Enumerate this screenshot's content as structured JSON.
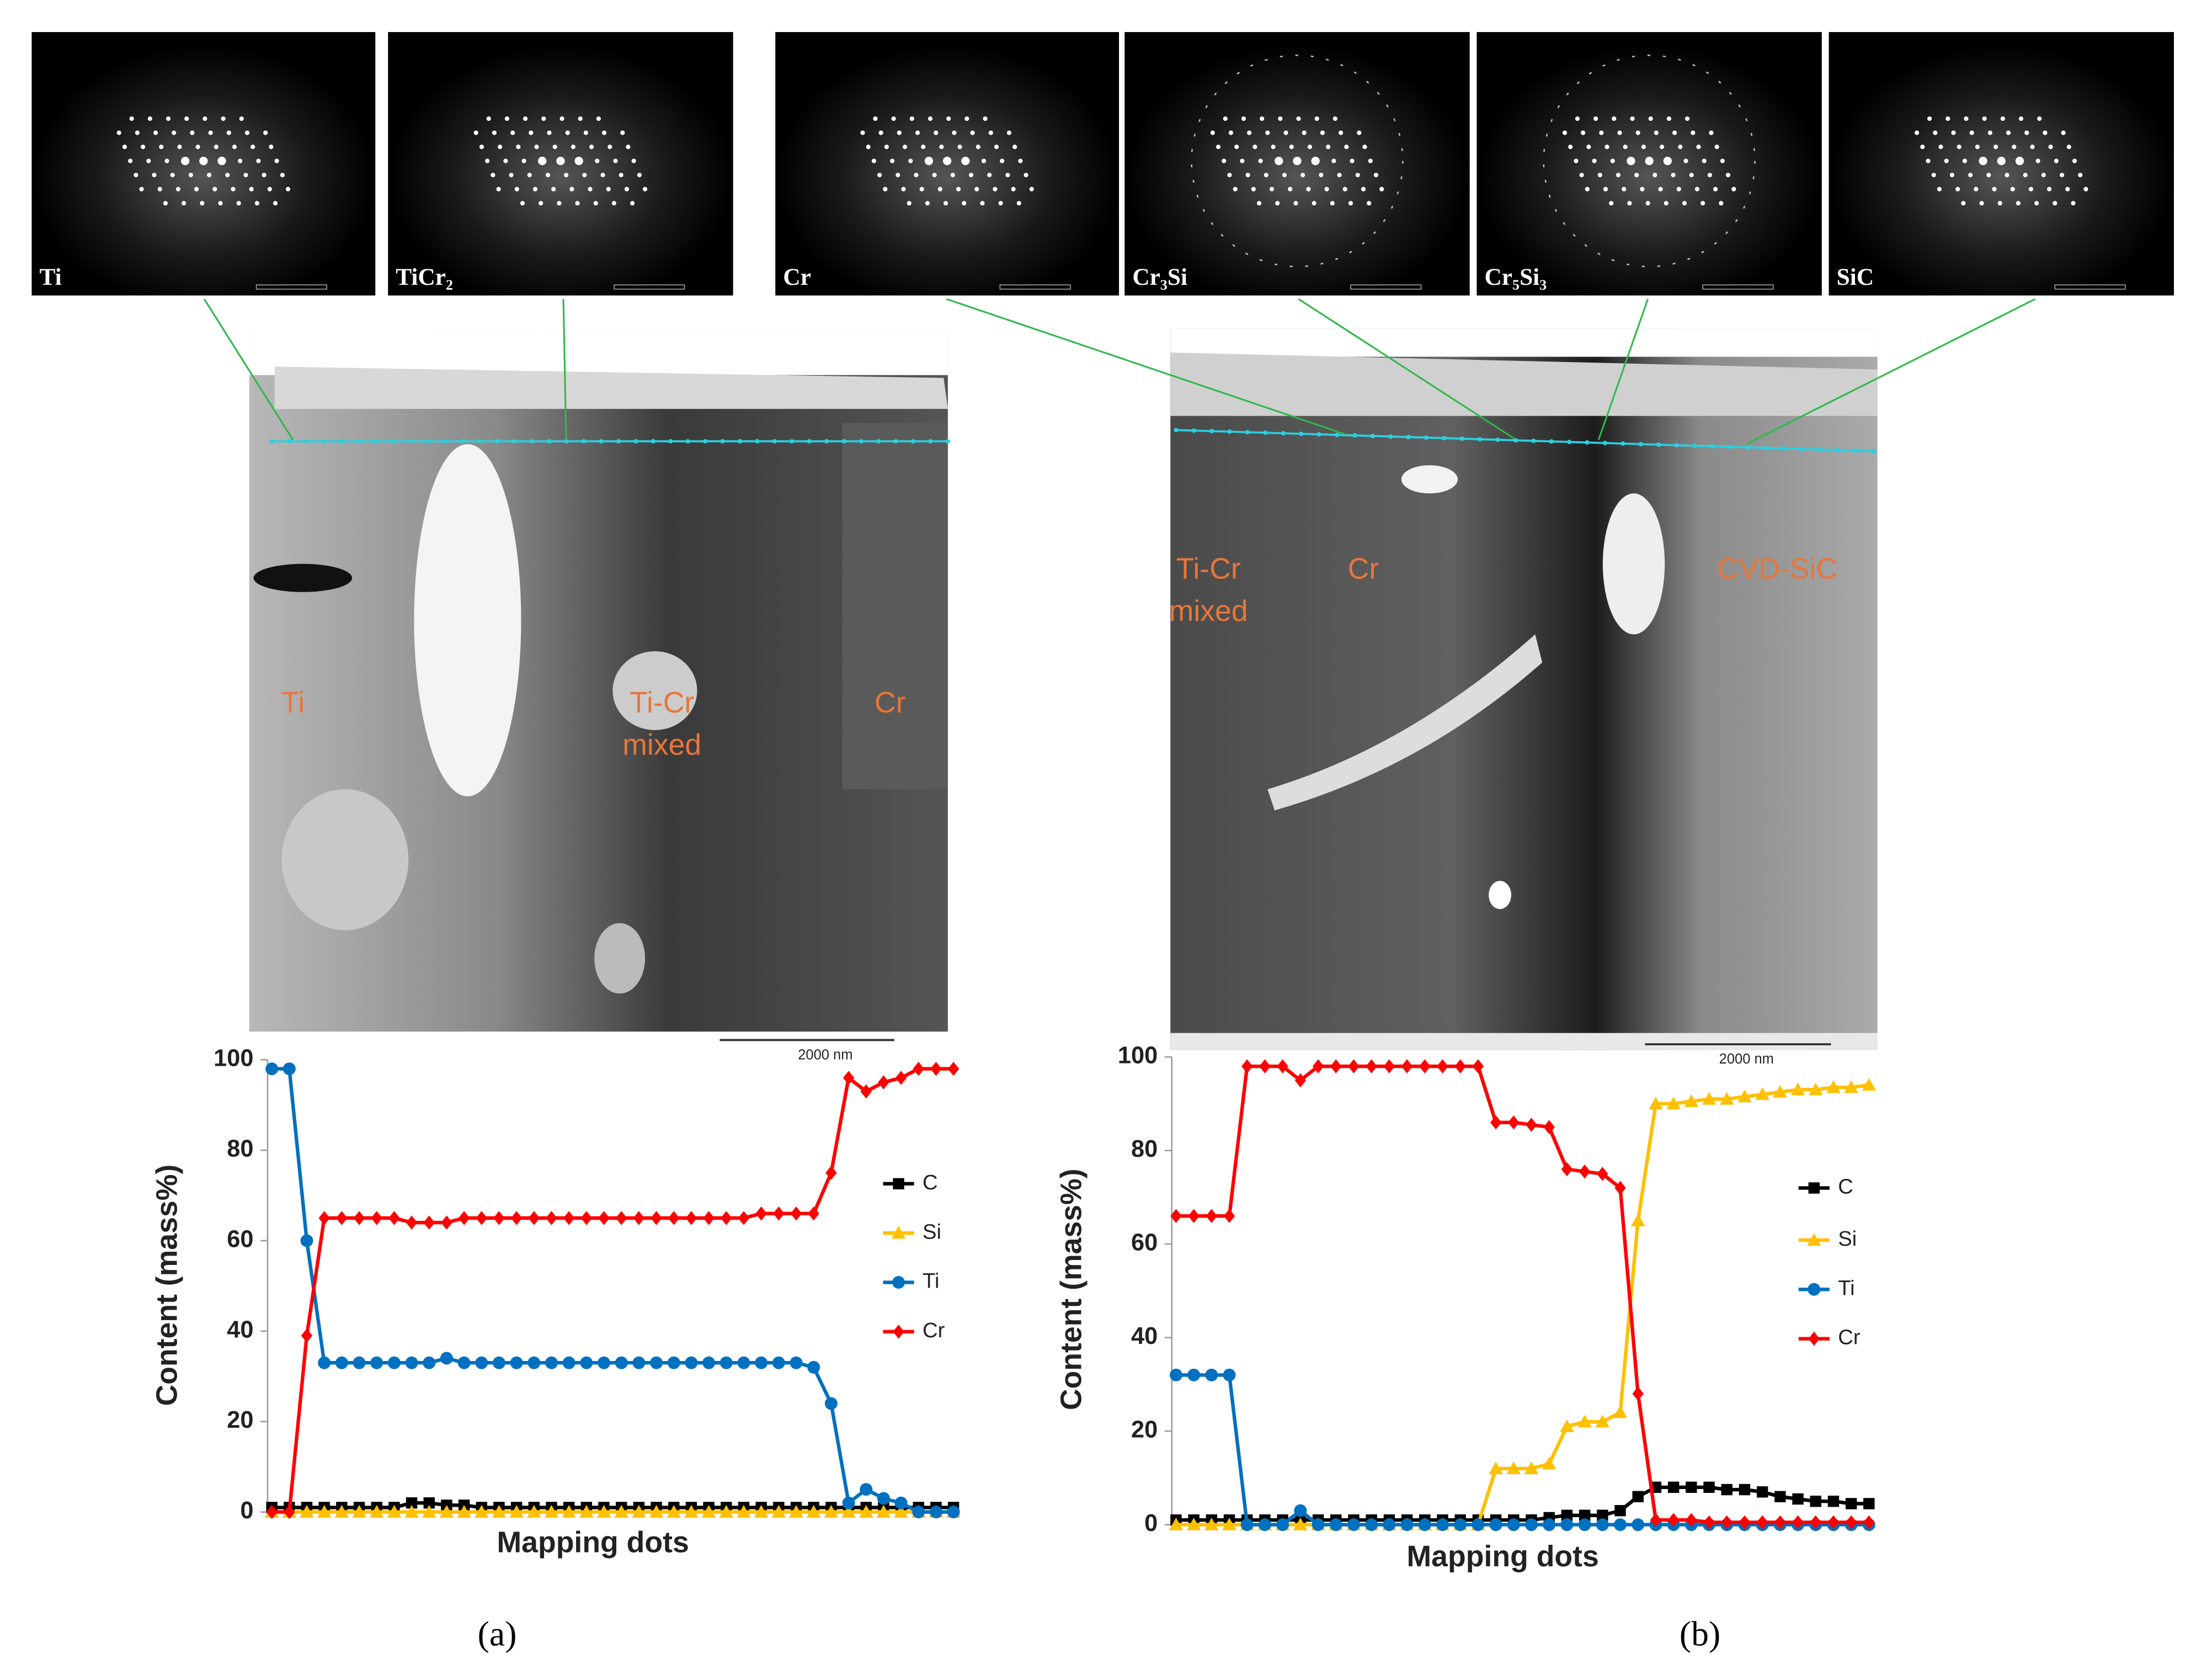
{
  "diffraction_labels": [
    "Ti",
    "TiCr₂",
    "Cr",
    "Cr₃Si",
    "Cr₅Si₃",
    "SiC"
  ],
  "micrographs": [
    {
      "labels": [
        [
          "Ti"
        ],
        [
          "Ti-Cr",
          "mixed"
        ],
        [
          "Cr"
        ]
      ],
      "scale_bar": "2000 nm"
    },
    {
      "labels": [
        [
          "Ti-Cr",
          "mixed"
        ],
        [
          "Cr"
        ],
        [
          "CVD-SiC"
        ]
      ],
      "scale_bar": "2000 nm"
    }
  ],
  "panel_labels": [
    "(a)",
    "(b)"
  ],
  "chart_data": [
    {
      "type": "line",
      "ylabel": "Content (mass%)",
      "xlabel": "Mapping dots",
      "categories": [
        null,
        null,
        null,
        null,
        null,
        null,
        null,
        null,
        null,
        null,
        null,
        null,
        null,
        null,
        null,
        null,
        null,
        null,
        null,
        null,
        null,
        null,
        null,
        null,
        null,
        null,
        null,
        null,
        null,
        null,
        null,
        null,
        null,
        null,
        null,
        null,
        null,
        null,
        null,
        null
      ],
      "ylim": [
        0,
        100
      ],
      "yticks": [
        0,
        20,
        40,
        60,
        80,
        100
      ],
      "grid": false,
      "series": [
        {
          "name": "C",
          "color": "#000000",
          "marker": "square",
          "values": [
            1,
            1,
            1,
            1,
            1,
            1,
            1,
            1,
            2,
            2,
            1.5,
            1.5,
            1,
            1,
            1,
            1,
            1,
            1,
            1,
            1,
            1,
            1,
            1,
            1,
            1,
            1,
            1,
            1,
            1,
            1,
            1,
            1,
            1,
            1,
            1,
            1,
            1,
            1,
            1,
            1
          ]
        },
        {
          "name": "Si",
          "color": "#ffc000",
          "marker": "triangle",
          "values": [
            0,
            0,
            0,
            0,
            0,
            0,
            0,
            0,
            0,
            0,
            0,
            0,
            0,
            0,
            0,
            0,
            0,
            0,
            0,
            0,
            0,
            0,
            0,
            0,
            0,
            0,
            0,
            0,
            0,
            0,
            0,
            0,
            0,
            0,
            0,
            0,
            0,
            0,
            0,
            0
          ]
        },
        {
          "name": "Ti",
          "color": "#0070c0",
          "marker": "circle",
          "values": [
            98,
            98,
            60,
            33,
            33,
            33,
            33,
            33,
            33,
            33,
            34,
            33,
            33,
            33,
            33,
            33,
            33,
            33,
            33,
            33,
            33,
            33,
            33,
            33,
            33,
            33,
            33,
            33,
            33,
            33,
            33,
            32,
            24,
            2,
            5,
            3,
            2,
            0,
            0,
            0
          ]
        },
        {
          "name": "Cr",
          "color": "#ff0000",
          "marker": "diamond",
          "values": [
            0,
            0,
            39,
            65,
            65,
            65,
            65,
            65,
            64,
            64,
            64,
            65,
            65,
            65,
            65,
            65,
            65,
            65,
            65,
            65,
            65,
            65,
            65,
            65,
            65,
            65,
            65,
            65,
            66,
            66,
            66,
            66,
            75,
            96,
            93,
            95,
            96,
            98,
            98,
            98
          ]
        }
      ]
    },
    {
      "type": "line",
      "ylabel": "Content (mass%)",
      "xlabel": "Mapping dots",
      "categories": [
        null,
        null,
        null,
        null,
        null,
        null,
        null,
        null,
        null,
        null,
        null,
        null,
        null,
        null,
        null,
        null,
        null,
        null,
        null,
        null,
        null,
        null,
        null,
        null,
        null,
        null,
        null,
        null,
        null,
        null,
        null,
        null,
        null,
        null,
        null,
        null,
        null,
        null,
        null,
        null
      ],
      "ylim": [
        0,
        100
      ],
      "yticks": [
        0,
        20,
        40,
        60,
        80,
        100
      ],
      "grid": false,
      "series": [
        {
          "name": "C",
          "color": "#000000",
          "marker": "square",
          "values": [
            1,
            1,
            1,
            1,
            1,
            1,
            1,
            1,
            1,
            1,
            1,
            1,
            1,
            1,
            1,
            1,
            1,
            1,
            1,
            1,
            1,
            1.5,
            2,
            2,
            2,
            3,
            6,
            8,
            8,
            8,
            8,
            7.5,
            7.5,
            7,
            6,
            5.5,
            5,
            5,
            4.5,
            4.5
          ]
        },
        {
          "name": "Si",
          "color": "#ffc000",
          "marker": "triangle",
          "values": [
            0,
            0,
            0,
            0,
            0,
            0,
            0,
            0,
            0,
            0,
            0,
            0,
            0,
            0,
            0,
            0,
            0,
            0,
            12,
            12,
            12,
            13,
            21,
            22,
            22,
            24,
            65,
            90,
            90,
            90.5,
            91,
            91,
            91.5,
            92,
            92.5,
            93,
            93,
            93.5,
            93.5,
            94
          ]
        },
        {
          "name": "Ti",
          "color": "#0070c0",
          "marker": "circle",
          "values": [
            32,
            32,
            32,
            32,
            0,
            0,
            0,
            3,
            0,
            0,
            0,
            0,
            0,
            0,
            0,
            0,
            0,
            0,
            0,
            0,
            0,
            0,
            0,
            0,
            0,
            0,
            0,
            0,
            0,
            0,
            0,
            0,
            0,
            0,
            0,
            0,
            0,
            0,
            0,
            0
          ]
        },
        {
          "name": "Cr",
          "color": "#ff0000",
          "marker": "diamond",
          "values": [
            66,
            66,
            66,
            66,
            98,
            98,
            98,
            95,
            98,
            98,
            98,
            98,
            98,
            98,
            98,
            98,
            98,
            98,
            86,
            86,
            85.5,
            85,
            76,
            75.5,
            75,
            72,
            28,
            1,
            1,
            1,
            0.5,
            0.5,
            0.5,
            0.5,
            0.5,
            0.5,
            0.5,
            0.5,
            0.5,
            0.5
          ]
        }
      ]
    }
  ]
}
